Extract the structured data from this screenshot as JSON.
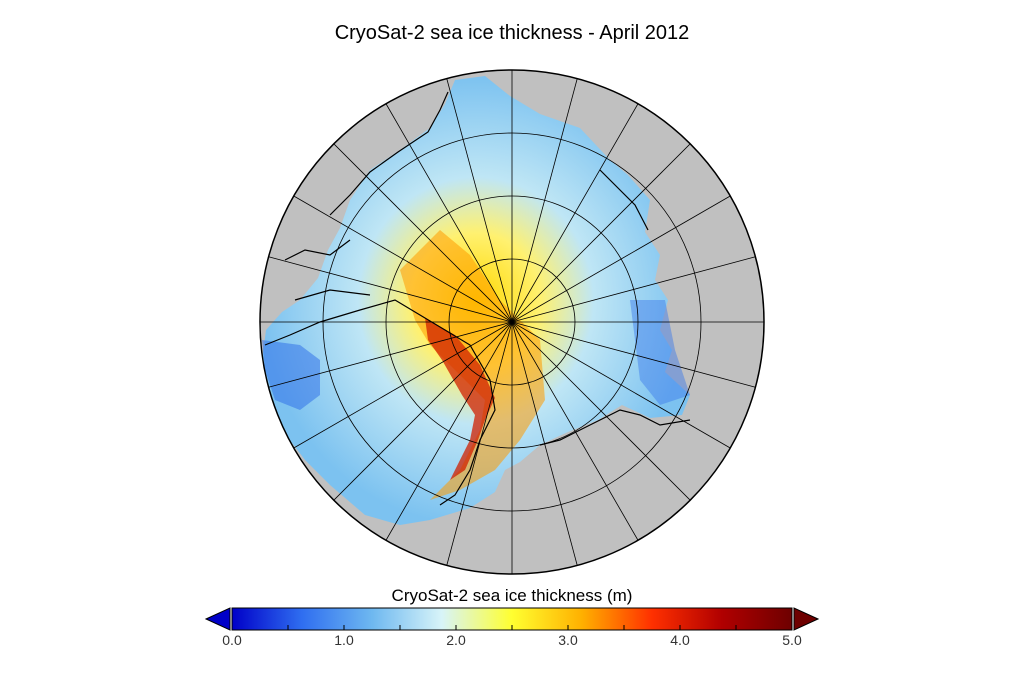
{
  "title": "CryoSat-2 sea ice thickness - April 2012",
  "colorbar": {
    "title": "CryoSat-2 sea ice thickness (m)",
    "min": 0.0,
    "max": 5.0,
    "tick_labels": [
      "0.0",
      "1.0",
      "2.0",
      "3.0",
      "4.0",
      "5.0"
    ],
    "extend": "both",
    "colors": [
      "#0000c8",
      "#2f6ef0",
      "#6eb8f0",
      "#d8f4f8",
      "#ffff30",
      "#ffb000",
      "#ff3000",
      "#b00000",
      "#6e0000"
    ]
  },
  "map": {
    "projection": "north polar stereographic",
    "land_color": "#c0c0c0",
    "coastline_color": "#000000",
    "graticule_color": "#000000",
    "meridian_spacing_deg": 15,
    "parallels_drawn": 3
  }
}
